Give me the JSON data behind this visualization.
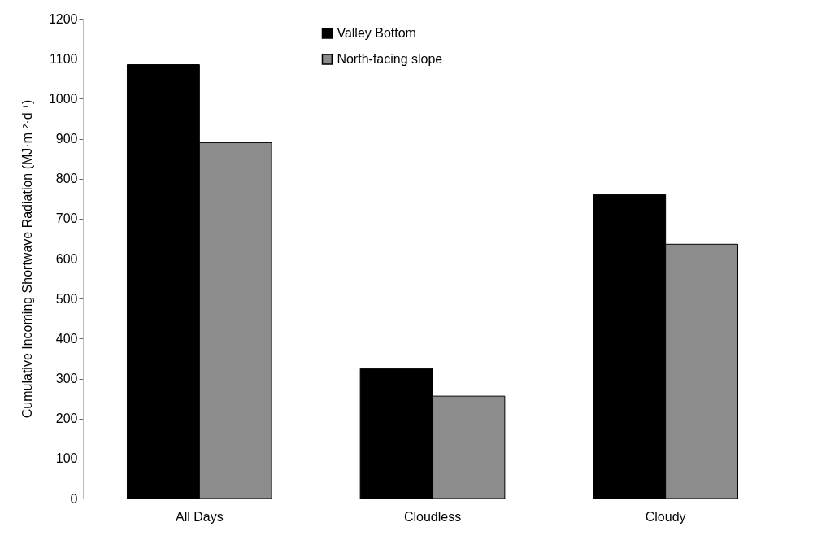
{
  "chart_data": {
    "type": "bar",
    "ylabel": "Cumulative Incoming Shortwave Radiation (MJ·m⁻²·d⁻¹)",
    "categories": [
      "All Days",
      "Cloudless",
      "Cloudy"
    ],
    "series": [
      {
        "name": "Valley Bottom",
        "color": "#000000",
        "values": [
          1085,
          325,
          760
        ]
      },
      {
        "name": "North-facing slope",
        "color": "#8c8c8c",
        "values": [
          890,
          256,
          636
        ]
      }
    ],
    "ylim": [
      0,
      1200
    ],
    "yticks": [
      0,
      100,
      200,
      300,
      400,
      500,
      600,
      700,
      800,
      900,
      1000,
      1100,
      1200
    ],
    "grid": false,
    "legend": "top"
  }
}
